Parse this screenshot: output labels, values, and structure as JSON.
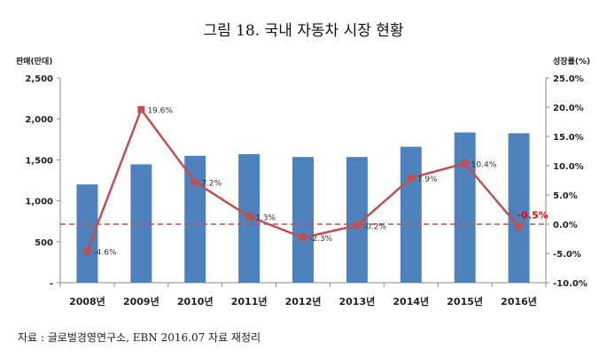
{
  "chart_data": {
    "type": "bar",
    "title": "그림 18. 국내 자동차 시장 현황",
    "ylabel": "판매(만대)",
    "y2label": "성장률(%)",
    "categories": [
      "2008년",
      "2009년",
      "2010년",
      "2011년",
      "2012년",
      "2013년",
      "2014년",
      "2015년",
      "2016년"
    ],
    "ylim": [
      0,
      2500
    ],
    "y2lim": [
      -10,
      25
    ],
    "y_ticks": [
      "-",
      "500",
      "1,000",
      "1,500",
      "2,000",
      "2,500"
    ],
    "y2_ticks": [
      "-10.0%",
      "-5.0%",
      "0.0%",
      "5.0%",
      "10.0%",
      "15.0%",
      "20.0%",
      "25.0%"
    ],
    "series": [
      {
        "type": "bar",
        "axis": "left",
        "values": [
          1200,
          1445,
          1550,
          1570,
          1535,
          1535,
          1660,
          1835,
          1825
        ]
      },
      {
        "type": "line",
        "axis": "right",
        "values": [
          -4.6,
          19.6,
          7.2,
          1.3,
          -2.3,
          -0.2,
          7.9,
          10.4,
          -0.5
        ],
        "labels": [
          "-4.6%",
          "19.6%",
          "7.2%",
          "1.3%",
          "-2.3%",
          "-0.2%",
          "7.9%",
          "10.4%",
          "-0.5%"
        ]
      }
    ],
    "reference_line": {
      "axis": "right",
      "value": 0,
      "style": "dashed"
    },
    "grid": false,
    "colors": {
      "bar": "#4f81bd",
      "line": "#c0504d",
      "highlight_label": "#ff0000"
    },
    "highlight_label_index": 8
  },
  "source": "자료 : 글로벌경영연구소, EBN 2016.07 자료 재정리"
}
